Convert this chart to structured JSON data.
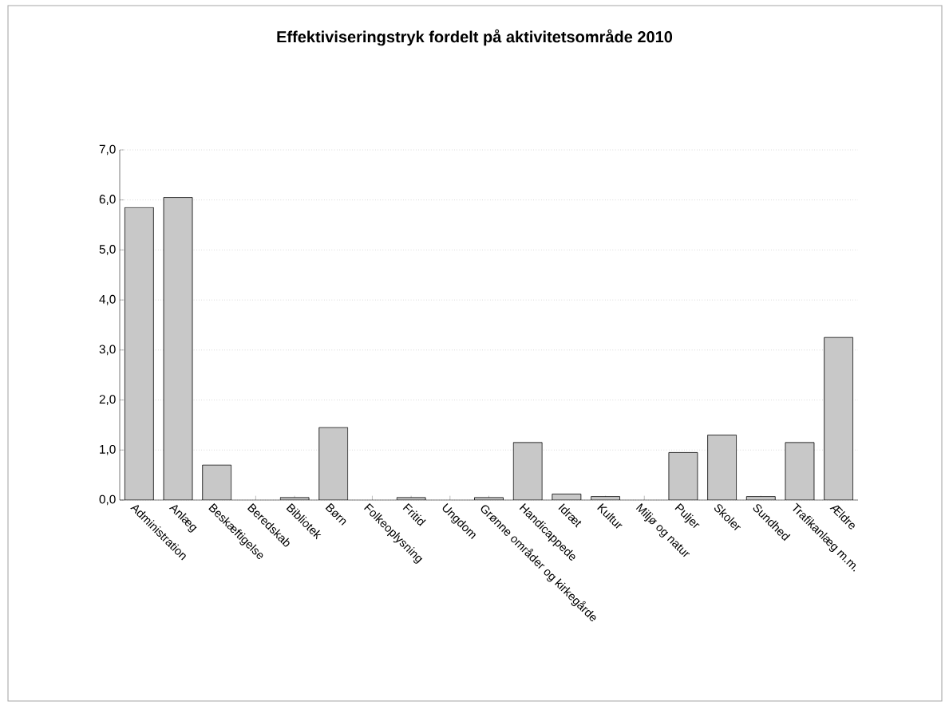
{
  "chart_data": {
    "type": "bar",
    "title": "Effektiviseringstryk fordelt på aktivitetsområde 2010",
    "categories": [
      "Administration",
      "Anlæg",
      "Beskæftigelse",
      "Beredskab",
      "Bibliotek",
      "Børn",
      "Folkeoplysning",
      "Fritid",
      "Ungdom",
      "Grønne områder og kirkegårde",
      "Handicappede",
      "Idræt",
      "Kultur",
      "Miljø og natur",
      "Puljer",
      "Skoler",
      "Sundhed",
      "Trafikanlæg m.m.",
      "Ældre"
    ],
    "values": [
      5.85,
      6.05,
      0.7,
      0,
      0.05,
      1.45,
      0,
      0.05,
      0,
      0.05,
      1.15,
      0.12,
      0.07,
      0,
      0.95,
      1.3,
      0.07,
      1.15,
      3.25
    ],
    "color": "#c8c8c8",
    "ylim": [
      0,
      7
    ],
    "yticks": [
      {
        "value": 0,
        "label": "0,0"
      },
      {
        "value": 1,
        "label": "1,0"
      },
      {
        "value": 2,
        "label": "2,0"
      },
      {
        "value": 3,
        "label": "3,0"
      },
      {
        "value": 4,
        "label": "4,0"
      },
      {
        "value": 5,
        "label": "5,0"
      },
      {
        "value": 6,
        "label": "6,0"
      },
      {
        "value": 7,
        "label": "7,0"
      }
    ],
    "grid": "y"
  }
}
